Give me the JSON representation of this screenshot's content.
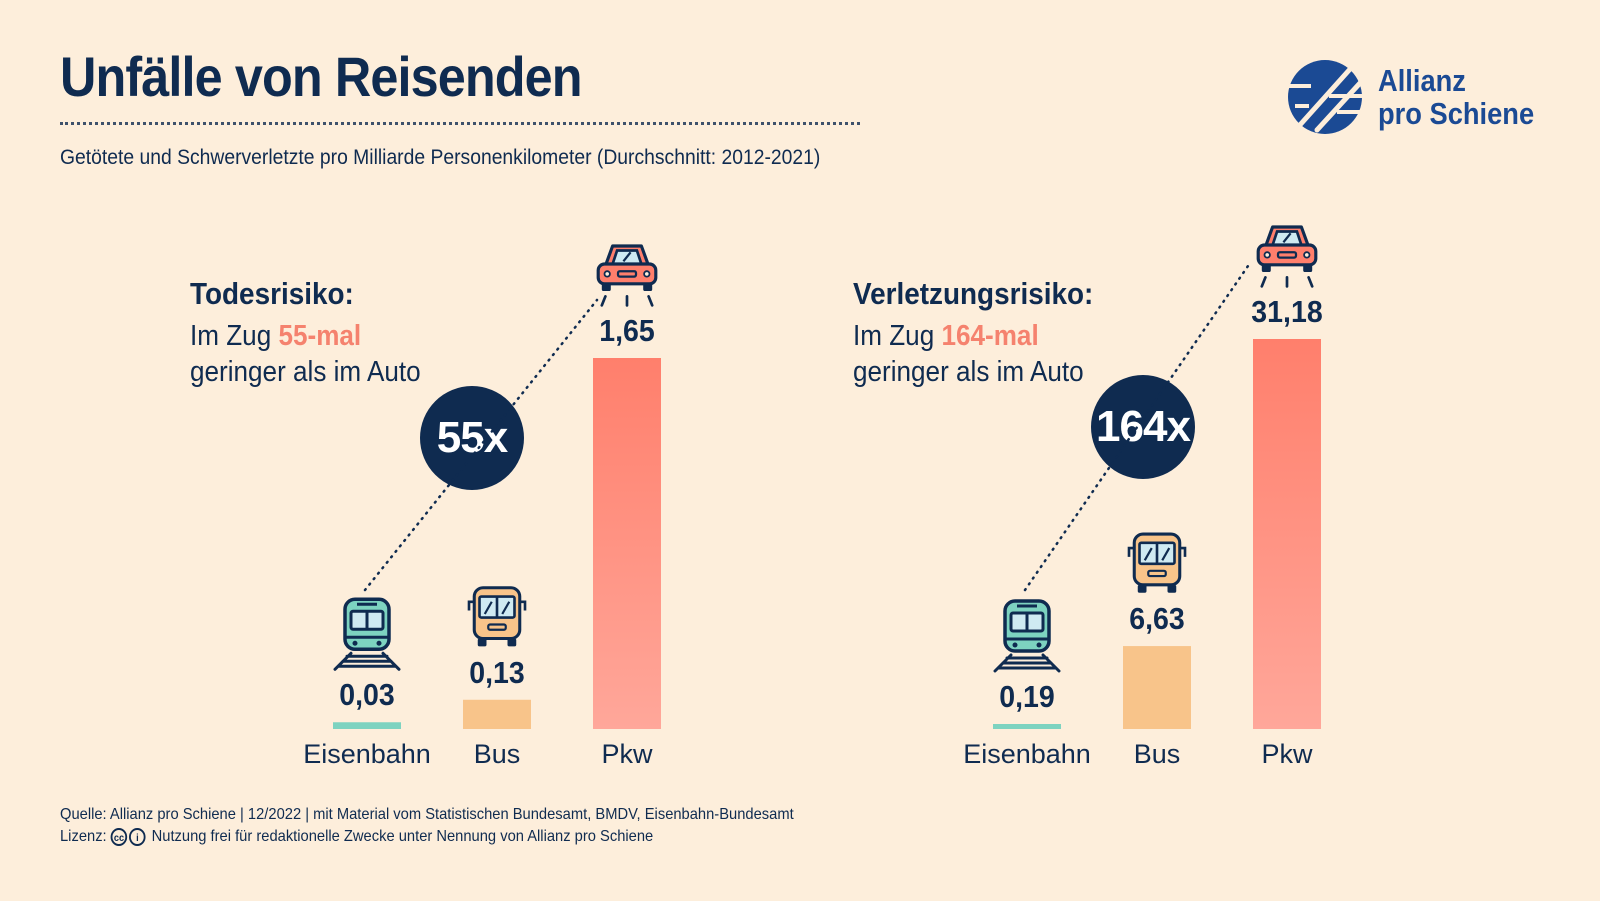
{
  "header": {
    "title": "Unfälle von Reisenden",
    "subtitle": "Getötete und Schwerverletzte pro Milliarde Personenkilometer (Durchschnitt: 2012-2021)"
  },
  "logo": {
    "line1": "Allianz",
    "line2": "pro Schiene"
  },
  "colors": {
    "navy": "#0f2b50",
    "background": "#fdeedb",
    "eisenbahn": "#7dd3c0",
    "bus": "#f8c48a",
    "pkw": "#ff7f6c",
    "highlight": "#f5826e"
  },
  "panels": [
    {
      "heading": "Todesrisiko:",
      "line1_prefix": "Im Zug ",
      "line1_highlight": "55-mal",
      "line2": "geringer als im Auto",
      "factor": "55x"
    },
    {
      "heading": "Verletzungsrisiko:",
      "line1_prefix": "Im Zug ",
      "line1_highlight": "164-mal",
      "line2": "geringer als im Auto",
      "factor": "164x"
    }
  ],
  "chart_data": [
    {
      "type": "bar",
      "title": "Todesrisiko:",
      "categories": [
        "Eisenbahn",
        "Bus",
        "Pkw"
      ],
      "values": [
        0.03,
        0.13,
        1.65
      ],
      "value_labels": [
        "0,03",
        "0,13",
        "1,65"
      ],
      "icons": [
        "train-icon",
        "bus-icon",
        "car-icon"
      ],
      "ylim": [
        0,
        1.65
      ],
      "grid": false
    },
    {
      "type": "bar",
      "title": "Verletzungsrisiko:",
      "categories": [
        "Eisenbahn",
        "Bus",
        "Pkw"
      ],
      "values": [
        0.19,
        6.63,
        31.18
      ],
      "value_labels": [
        "0,19",
        "6,63",
        "31,18"
      ],
      "icons": [
        "train-icon",
        "bus-icon",
        "car-icon"
      ],
      "ylim": [
        0,
        31.18
      ],
      "grid": false
    }
  ],
  "footer": {
    "source": "Quelle: Allianz pro Schiene | 12/2022 | mit Material vom Statistischen Bundesamt, BMDV, Eisenbahn-Bundesamt",
    "license_label": "Lizenz:",
    "license_text": "Nutzung frei für redaktionelle Zwecke unter Nennung von Allianz pro Schiene"
  }
}
